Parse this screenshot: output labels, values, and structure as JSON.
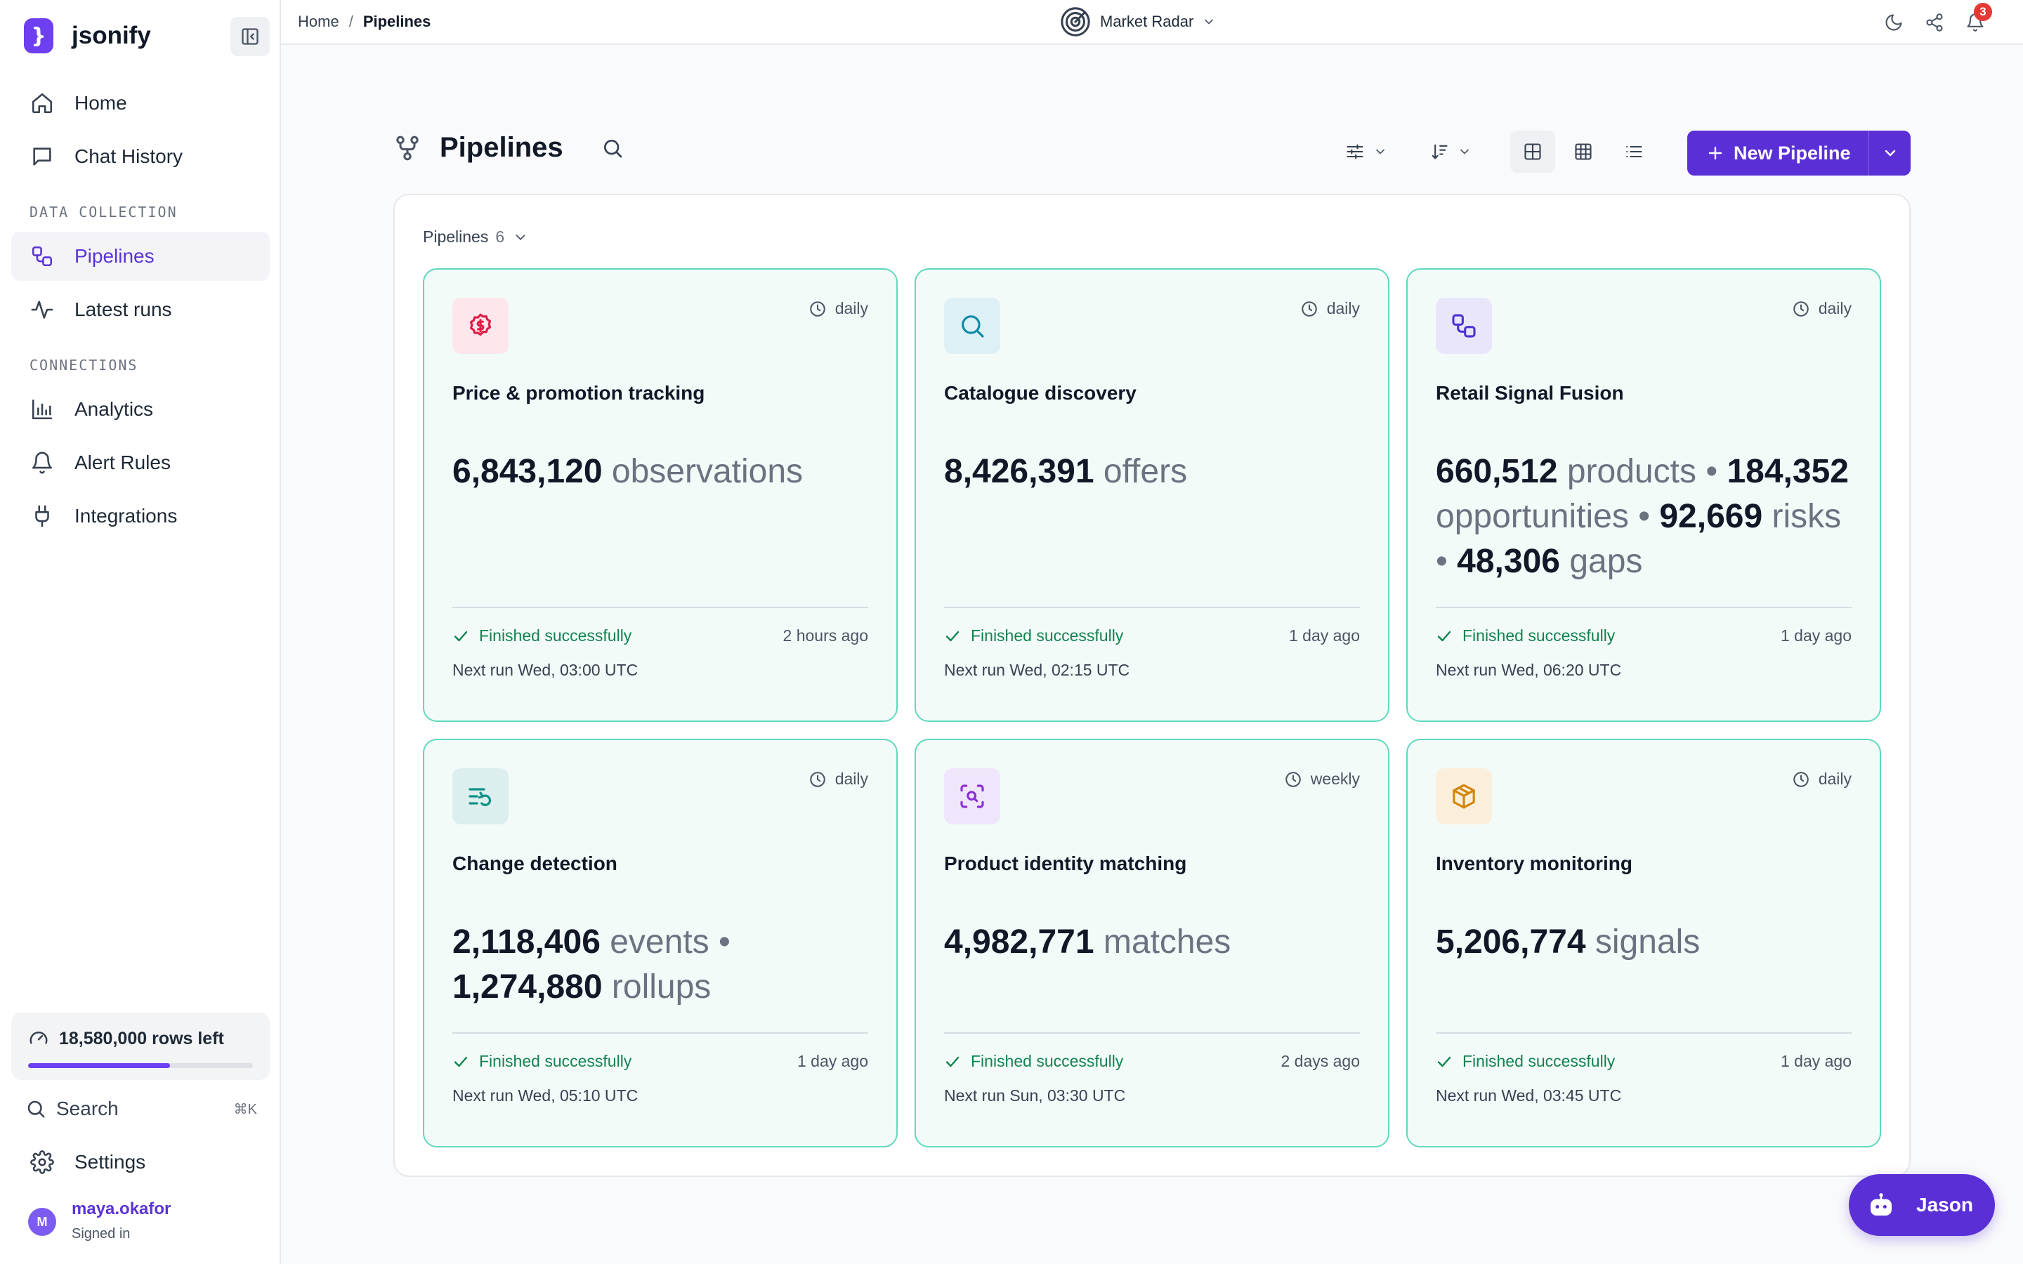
{
  "app": {
    "brand": "jsonify",
    "brand_glyph": "}"
  },
  "sidebar": {
    "items_top": [
      {
        "label": "Home",
        "icon": "home-icon"
      },
      {
        "label": "Chat History",
        "icon": "chat-icon"
      }
    ],
    "section_data": "DATA COLLECTION",
    "items_data": [
      {
        "label": "Pipelines",
        "icon": "pipelines-icon",
        "active": true
      },
      {
        "label": "Latest runs",
        "icon": "activity-icon"
      }
    ],
    "section_connections": "CONNECTIONS",
    "items_connections": [
      {
        "label": "Analytics",
        "icon": "bar-chart-icon"
      },
      {
        "label": "Alert Rules",
        "icon": "bell-icon"
      },
      {
        "label": "Integrations",
        "icon": "plug-icon"
      }
    ],
    "quota": {
      "label": "18,580,000 rows left",
      "fill_fraction": 0.63,
      "accent": "#6d3ff0"
    },
    "search": {
      "label": "Search",
      "shortcut": "⌘K"
    },
    "settings_label": "Settings",
    "user": {
      "initial": "M",
      "name": "maya.okafor",
      "status": "Signed in"
    }
  },
  "topbar": {
    "breadcrumb": {
      "home": "Home",
      "separator": "/",
      "current": "Pipelines"
    },
    "workspace": "Market Radar",
    "notification_count": "3"
  },
  "main": {
    "title": "Pipelines",
    "new_button": "New Pipeline",
    "panel": {
      "label": "Pipelines",
      "count": "6"
    },
    "cards": [
      {
        "title": "Price & promotion tracking",
        "frequency": "daily",
        "icon": "dollar-badge-icon",
        "icon_bg": "#fde7ec",
        "icon_color": "#e11d48",
        "stats": [
          {
            "value": "6,843,120",
            "unit": "observations"
          }
        ],
        "status": "Finished successfully",
        "ago": "2 hours ago",
        "next_run": "Next run Wed, 03:00 UTC"
      },
      {
        "title": "Catalogue discovery",
        "frequency": "daily",
        "icon": "search-icon",
        "icon_bg": "#ddf0f5",
        "icon_color": "#0e8aa8",
        "stats": [
          {
            "value": "8,426,391",
            "unit": "offers"
          }
        ],
        "status": "Finished successfully",
        "ago": "1 day ago",
        "next_run": "Next run Wed, 02:15 UTC"
      },
      {
        "title": "Retail Signal Fusion",
        "frequency": "daily",
        "icon": "pipelines-icon",
        "icon_bg": "#e9e6fb",
        "icon_color": "#4f35d2",
        "stats": [
          {
            "value": "660,512",
            "unit": "products"
          },
          {
            "value": "184,352",
            "unit": "opportunities"
          },
          {
            "value": "92,669",
            "unit": "risks"
          },
          {
            "value": "48,306",
            "unit": "gaps"
          }
        ],
        "status": "Finished successfully",
        "ago": "1 day ago",
        "next_run": "Next run Wed, 06:20 UTC"
      },
      {
        "title": "Change detection",
        "frequency": "daily",
        "icon": "list-refresh-icon",
        "icon_bg": "#dcefee",
        "icon_color": "#0f8f86",
        "stats": [
          {
            "value": "2,118,406",
            "unit": "events"
          },
          {
            "value": "1,274,880",
            "unit": "rollups"
          }
        ],
        "status": "Finished successfully",
        "ago": "1 day ago",
        "next_run": "Next run Wed, 05:10 UTC"
      },
      {
        "title": "Product identity matching",
        "frequency": "weekly",
        "icon": "scan-search-icon",
        "icon_bg": "#efe6fb",
        "icon_color": "#8b2fd8",
        "stats": [
          {
            "value": "4,982,771",
            "unit": "matches"
          }
        ],
        "status": "Finished successfully",
        "ago": "2 days ago",
        "next_run": "Next run Sun, 03:30 UTC"
      },
      {
        "title": "Inventory monitoring",
        "frequency": "daily",
        "icon": "package-icon",
        "icon_bg": "#fbefdc",
        "icon_color": "#d4860b",
        "stats": [
          {
            "value": "5,206,774",
            "unit": "signals"
          }
        ],
        "status": "Finished successfully",
        "ago": "1 day ago",
        "next_run": "Next run Wed, 03:45 UTC"
      }
    ]
  },
  "chat": {
    "label": "Jason"
  }
}
